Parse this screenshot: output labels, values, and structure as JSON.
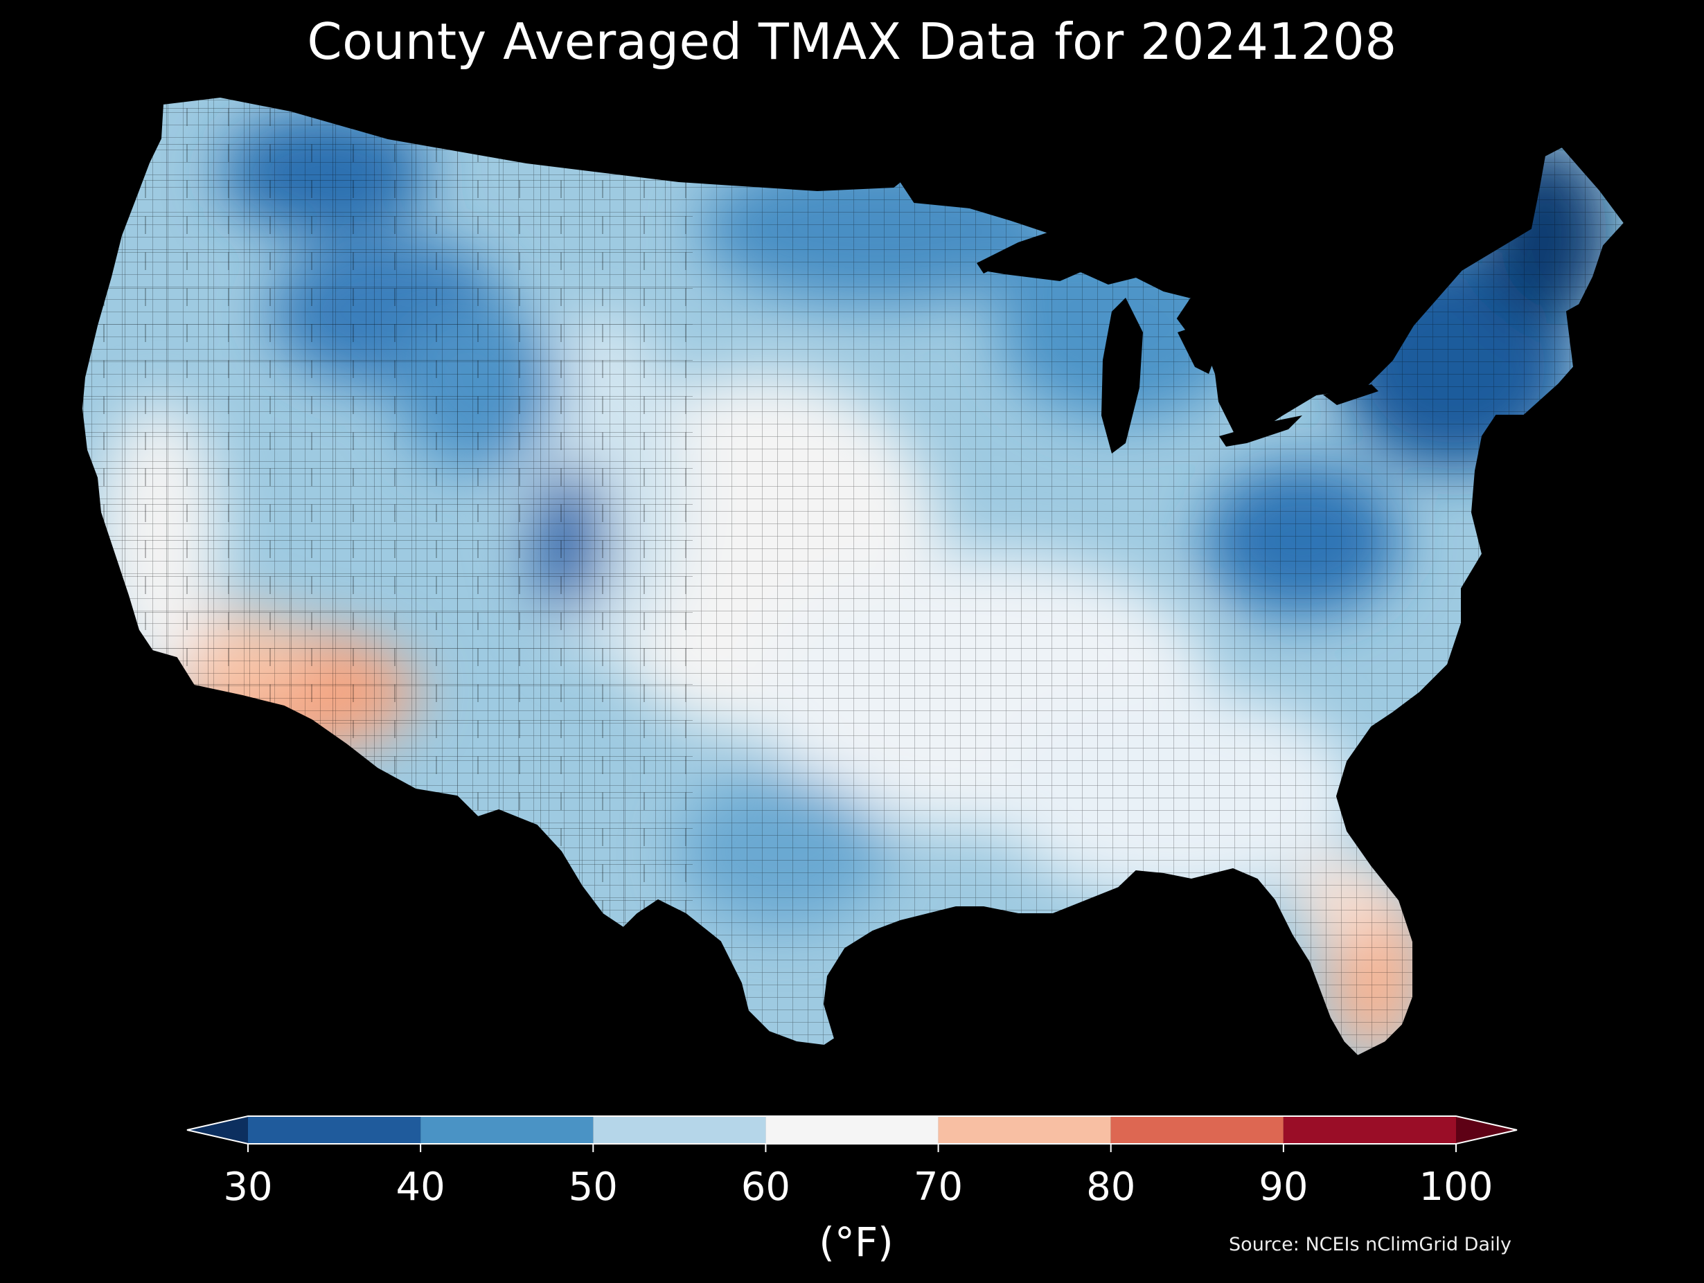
{
  "title": "County Averaged TMAX Data for 20241208",
  "colorbar": {
    "ticks": [
      "30",
      "40",
      "50",
      "60",
      "70",
      "80",
      "90",
      "100"
    ],
    "unit": "(°F)",
    "bins": [
      {
        "from": 30,
        "to": 40,
        "color": "#1f5b9c"
      },
      {
        "from": 40,
        "to": 50,
        "color": "#4a93c5"
      },
      {
        "from": 50,
        "to": 60,
        "color": "#b5d6e9"
      },
      {
        "from": 60,
        "to": 70,
        "color": "#f5f5f5"
      },
      {
        "from": 70,
        "to": 80,
        "color": "#f8bfa3"
      },
      {
        "from": 80,
        "to": 90,
        "color": "#dd6752"
      },
      {
        "from": 90,
        "to": 100,
        "color": "#9a0d27"
      }
    ],
    "under_color": "#0c2f5f",
    "over_color": "#5e0115"
  },
  "source": "Source: NCEIs nClimGrid Daily"
}
